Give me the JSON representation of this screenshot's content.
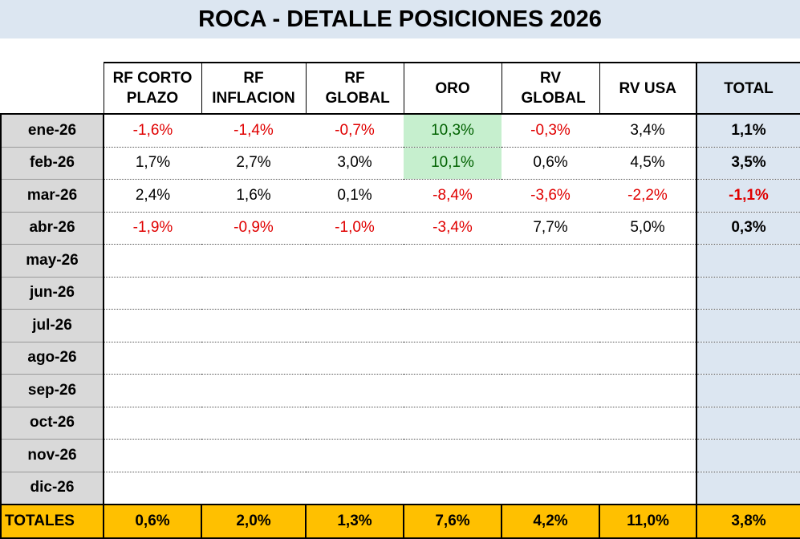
{
  "title": "ROCA - DETALLE POSICIONES 2026",
  "headers": {
    "rf_corto": "RF CORTO PLAZO",
    "rf_inflacion": "RF INFLACION",
    "rf_global": "RF GLOBAL",
    "oro": "ORO",
    "rv_global": "RV GLOBAL",
    "rv_usa": "RV USA",
    "total": "TOTAL"
  },
  "rows": [
    {
      "month": "ene-26",
      "rf_corto": "-1,6%",
      "rf_inflacion": "-1,4%",
      "rf_global": "-0,7%",
      "oro": "10,3%",
      "rv_global": "-0,3%",
      "rv_usa": "3,4%",
      "total": "1,1%"
    },
    {
      "month": "feb-26",
      "rf_corto": "1,7%",
      "rf_inflacion": "2,7%",
      "rf_global": "3,0%",
      "oro": "10,1%",
      "rv_global": "0,6%",
      "rv_usa": "4,5%",
      "total": "3,5%"
    },
    {
      "month": "mar-26",
      "rf_corto": "2,4%",
      "rf_inflacion": "1,6%",
      "rf_global": "0,1%",
      "oro": "-8,4%",
      "rv_global": "-3,6%",
      "rv_usa": "-2,2%",
      "total": "-1,1%"
    },
    {
      "month": "abr-26",
      "rf_corto": "-1,9%",
      "rf_inflacion": "-0,9%",
      "rf_global": "-1,0%",
      "oro": "-3,4%",
      "rv_global": "7,7%",
      "rv_usa": "5,0%",
      "total": "0,3%"
    },
    {
      "month": "may-26",
      "rf_corto": "",
      "rf_inflacion": "",
      "rf_global": "",
      "oro": "",
      "rv_global": "",
      "rv_usa": "",
      "total": ""
    },
    {
      "month": "jun-26",
      "rf_corto": "",
      "rf_inflacion": "",
      "rf_global": "",
      "oro": "",
      "rv_global": "",
      "rv_usa": "",
      "total": ""
    },
    {
      "month": "jul-26",
      "rf_corto": "",
      "rf_inflacion": "",
      "rf_global": "",
      "oro": "",
      "rv_global": "",
      "rv_usa": "",
      "total": ""
    },
    {
      "month": "ago-26",
      "rf_corto": "",
      "rf_inflacion": "",
      "rf_global": "",
      "oro": "",
      "rv_global": "",
      "rv_usa": "",
      "total": ""
    },
    {
      "month": "sep-26",
      "rf_corto": "",
      "rf_inflacion": "",
      "rf_global": "",
      "oro": "",
      "rv_global": "",
      "rv_usa": "",
      "total": ""
    },
    {
      "month": "oct-26",
      "rf_corto": "",
      "rf_inflacion": "",
      "rf_global": "",
      "oro": "",
      "rv_global": "",
      "rv_usa": "",
      "total": ""
    },
    {
      "month": "nov-26",
      "rf_corto": "",
      "rf_inflacion": "",
      "rf_global": "",
      "oro": "",
      "rv_global": "",
      "rv_usa": "",
      "total": ""
    },
    {
      "month": "dic-26",
      "rf_corto": "",
      "rf_inflacion": "",
      "rf_global": "",
      "oro": "",
      "rv_global": "",
      "rv_usa": "",
      "total": ""
    }
  ],
  "totals": {
    "label": "TOTALES",
    "rf_corto": "0,6%",
    "rf_inflacion": "2,0%",
    "rf_global": "1,3%",
    "oro": "7,6%",
    "rv_global": "4,2%",
    "rv_usa": "11,0%",
    "total": "3,8%"
  },
  "colors": {
    "title_bg": "#dce6f1",
    "month_bg": "#d9d9d9",
    "total_col_bg": "#dce6f1",
    "totals_row_bg": "#ffc000",
    "negative_text": "#e00000",
    "oro_highlight_bg": "#c6efce",
    "oro_highlight_text": "#006100"
  }
}
